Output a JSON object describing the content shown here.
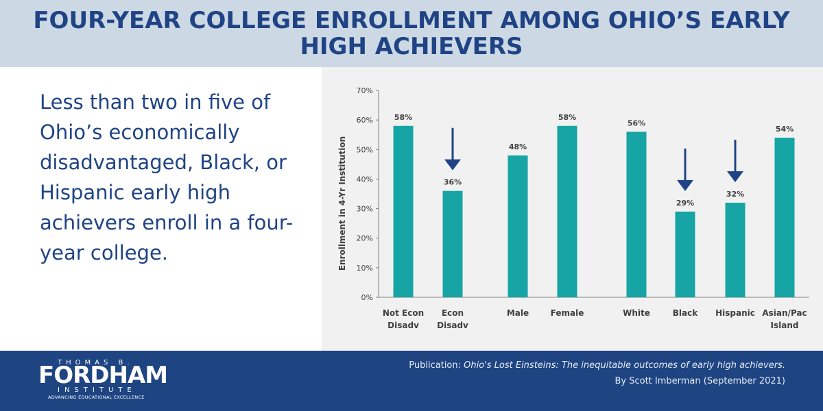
{
  "header": {
    "title": "FOUR-YEAR COLLEGE ENROLLMENT AMONG OHIO’S EARLY HIGH ACHIEVERS"
  },
  "message": "Less than two in five of Ohio’s economically disadvantaged, Black, or Hispanic early high achievers enroll in a four-year college.",
  "chart_data": {
    "type": "bar",
    "categories": [
      [
        "Not Econ",
        "Disadv"
      ],
      [
        "Econ",
        "Disadv"
      ],
      [
        "Male"
      ],
      [
        "Female"
      ],
      [
        "White"
      ],
      [
        "Black"
      ],
      [
        "Hispanic"
      ],
      [
        "Asian/Pac",
        "Island"
      ]
    ],
    "values": [
      58,
      36,
      48,
      58,
      56,
      29,
      32,
      54
    ],
    "data_labels": [
      "58%",
      "36%",
      "48%",
      "58%",
      "56%",
      "29%",
      "32%",
      "54%"
    ],
    "ylabel": "Enrollment in 4-Yr Institution",
    "ylim": [
      0,
      70
    ],
    "yticks": [
      "0%",
      "10%",
      "20%",
      "30%",
      "40%",
      "50%",
      "60%",
      "70%"
    ],
    "highlighted": [
      "Econ Disadv",
      "Black",
      "Hispanic"
    ],
    "grid": false,
    "bar_color": "#16a4a4",
    "arrow_color": "#1f4384"
  },
  "footer": {
    "logo": {
      "top": "THOMAS B.",
      "main": "FORDHAM",
      "sub": "INSTITUTE",
      "tagline": "ADVANCING EDUCATIONAL EXCELLENCE"
    },
    "publication_prefix": "Publication: ",
    "publication_title": "Ohio's Lost Einsteins: The inequitable outcomes of early high achievers.",
    "byline": "By Scott Imberman (September 2021)"
  },
  "colors": {
    "header_bg": "#ccd8e4",
    "title": "#1f4384",
    "footer_bg": "#1e4482",
    "chart_bg": "#f1f1f1"
  }
}
